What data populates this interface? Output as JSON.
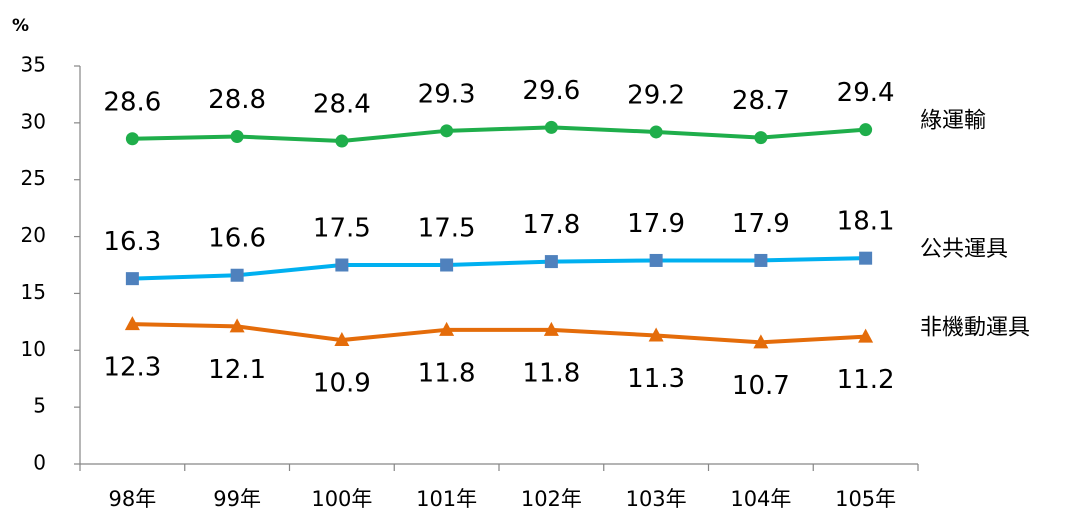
{
  "chart_data": {
    "type": "line",
    "y_unit_label": "%",
    "categories": [
      "98年",
      "99年",
      "100年",
      "101年",
      "102年",
      "103年",
      "104年",
      "105年"
    ],
    "series": [
      {
        "name": "綠運輸",
        "color": "#1fae4b",
        "marker": "circle",
        "marker_color": "#1fae4b",
        "label_position": "above",
        "values": [
          28.6,
          28.8,
          28.4,
          29.3,
          29.6,
          29.2,
          28.7,
          29.4
        ]
      },
      {
        "name": "公共運具",
        "color": "#00b0f0",
        "marker": "square",
        "marker_color": "#4f81bd",
        "label_position": "above",
        "values": [
          16.3,
          16.6,
          17.5,
          17.5,
          17.8,
          17.9,
          17.9,
          18.1
        ]
      },
      {
        "name": "非機動運具",
        "color": "#e46c0a",
        "marker": "triangle",
        "marker_color": "#e46c0a",
        "label_position": "below",
        "values": [
          12.3,
          12.1,
          10.9,
          11.8,
          11.8,
          11.3,
          10.7,
          11.2
        ]
      }
    ],
    "ylim": [
      0,
      35
    ],
    "yticks": [
      0,
      5,
      10,
      15,
      20,
      25,
      30,
      35
    ]
  }
}
